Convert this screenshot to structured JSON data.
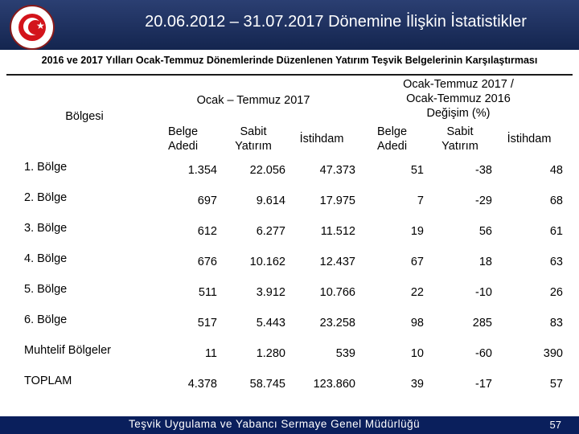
{
  "header": {
    "title": "20.06.2012 – 31.07.2017 Dönemine İlişkin İstatistikler"
  },
  "subtitle": "2016 ve 2017 Yılları Ocak-Temmuz Dönemlerinde Düzenlenen Yatırım Teşvik Belgelerinin Karşılaştırması",
  "table": {
    "region_header": "Bölgesi",
    "group1_header": "Ocak – Temmuz 2017",
    "group2_header_lines": [
      "Ocak-Temmuz 2017 /",
      "Ocak-Temmuz 2016",
      "Değişim (%)"
    ],
    "sub_headers": {
      "belge": [
        "Belge",
        "Adedi"
      ],
      "sabit": [
        "Sabit",
        "Yatırım"
      ],
      "istihdam": "İstihdam"
    },
    "rows": [
      {
        "label": "1. Bölge",
        "c1": "1.354",
        "c2": "22.056",
        "c3": "47.373",
        "c4": "51",
        "c5": "-38",
        "c6": "48"
      },
      {
        "label": "2. Bölge",
        "c1": "697",
        "c2": "9.614",
        "c3": "17.975",
        "c4": "7",
        "c5": "-29",
        "c6": "68"
      },
      {
        "label": "3. Bölge",
        "c1": "612",
        "c2": "6.277",
        "c3": "11.512",
        "c4": "19",
        "c5": "56",
        "c6": "61"
      },
      {
        "label": "4. Bölge",
        "c1": "676",
        "c2": "10.162",
        "c3": "12.437",
        "c4": "67",
        "c5": "18",
        "c6": "63"
      },
      {
        "label": "5. Bölge",
        "c1": "511",
        "c2": "3.912",
        "c3": "10.766",
        "c4": "22",
        "c5": "-10",
        "c6": "26"
      },
      {
        "label": "6. Bölge",
        "c1": "517",
        "c2": "5.443",
        "c3": "23.258",
        "c4": "98",
        "c5": "285",
        "c6": "83"
      },
      {
        "label": "Muhtelif Bölgeler",
        "c1": "11",
        "c2": "1.280",
        "c3": "539",
        "c4": "10",
        "c5": "-60",
        "c6": "390"
      },
      {
        "label": "TOPLAM",
        "c1": "4.378",
        "c2": "58.745",
        "c3": "123.860",
        "c4": "39",
        "c5": "-17",
        "c6": "57"
      }
    ]
  },
  "footer": {
    "text": "Teşvik Uygulama ve Yabancı Sermaye Genel Müdürlüğü",
    "page": "57"
  },
  "colors": {
    "header_bg": "#1f3262",
    "footer_bg": "#0a1f5c",
    "logo_red": "#d3141b"
  }
}
